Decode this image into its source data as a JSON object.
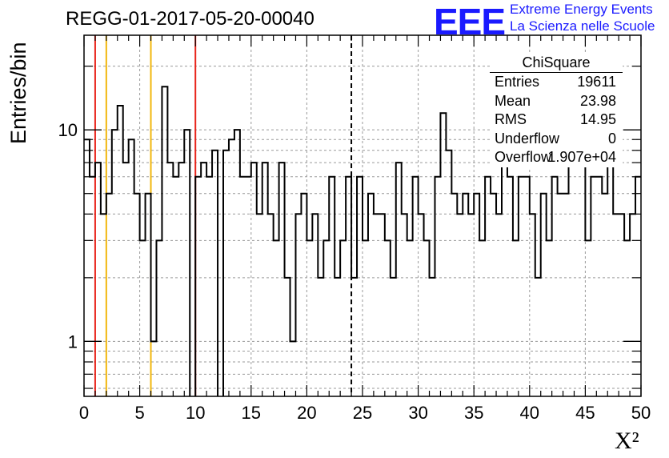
{
  "title": "REGG-01-2017-05-20-00040",
  "logo": {
    "mark": "EEE",
    "line1": "Extreme Energy Events",
    "line2": "La Scienza nelle Scuole",
    "color": "#1a1aff"
  },
  "stats": {
    "title": "ChiSquare",
    "rows": [
      {
        "key": "Entries",
        "value": "19611"
      },
      {
        "key": "Mean",
        "value": "23.98"
      },
      {
        "key": "RMS",
        "value": "14.95"
      },
      {
        "key": "Underflow",
        "value": "0"
      },
      {
        "key": "Overflow",
        "value": "1.907e+04"
      }
    ]
  },
  "chart_data": {
    "type": "bar",
    "style": "histogram-step",
    "ylabel": "Entries/bin",
    "xlabel": "X²",
    "xlim": [
      0,
      50
    ],
    "ylim": [
      0.55,
      28
    ],
    "yscale": "log",
    "grid": true,
    "bin_width": 0.5,
    "x_ticks": [
      "0",
      "5",
      "10",
      "15",
      "20",
      "25",
      "30",
      "35",
      "40",
      "45",
      "50"
    ],
    "y_ticks": [
      {
        "value": 1,
        "label": "1"
      },
      {
        "value": 10,
        "label": "10"
      }
    ],
    "values": [
      9,
      6,
      7,
      4,
      5,
      10,
      13,
      7,
      9,
      5,
      3,
      5,
      1,
      3,
      16,
      7,
      6,
      7,
      10,
      0,
      6,
      7,
      6,
      8,
      0,
      8,
      9,
      10,
      6,
      6,
      7,
      4,
      7,
      4,
      3,
      7,
      2,
      1,
      4,
      5,
      3,
      4,
      2,
      3,
      6,
      2,
      3,
      6,
      2,
      6,
      3,
      5,
      4,
      4,
      3,
      2,
      7,
      4,
      3,
      6,
      4,
      3,
      2,
      6,
      12,
      8,
      5,
      4,
      5,
      4,
      5,
      3,
      6,
      5,
      4,
      7,
      6,
      3,
      6,
      6,
      4,
      2,
      5,
      3,
      6,
      5,
      5,
      14,
      10,
      7,
      3,
      6,
      6,
      5,
      7,
      4,
      4,
      3,
      4,
      6
    ],
    "vlines": [
      {
        "x": 1,
        "color": "#e8231a",
        "style": "solid"
      },
      {
        "x": 2,
        "color": "#f2b70e",
        "style": "solid"
      },
      {
        "x": 6,
        "color": "#f2b70e",
        "style": "solid"
      },
      {
        "x": 10,
        "color": "#e8231a",
        "style": "solid"
      },
      {
        "x": 24,
        "color": "#000000",
        "style": "dashed"
      }
    ]
  }
}
